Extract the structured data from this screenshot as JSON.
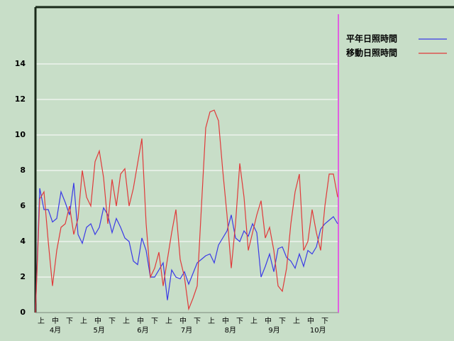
{
  "chart_data": {
    "type": "line",
    "x_minor_labels": [
      "上",
      "中",
      "下",
      "上",
      "中",
      "下",
      "上",
      "中",
      "下",
      "上",
      "中",
      "下",
      "上",
      "中",
      "下",
      "上",
      "中",
      "下",
      "上",
      "中",
      "下"
    ],
    "x_major_labels": [
      "4月",
      "5月",
      "6月",
      "7月",
      "8月",
      "9月",
      "10月"
    ],
    "ylim": [
      0,
      17.2
    ],
    "yticks": [
      0,
      2,
      4,
      6,
      8,
      10,
      12,
      14
    ],
    "grid": true,
    "series": [
      {
        "name": "平年日照時間",
        "color": "#3a3ae6",
        "values": [
          0,
          7.0,
          5.8,
          5.8,
          5.1,
          5.3,
          6.8,
          6.2,
          5.5,
          7.3,
          4.4,
          3.9,
          4.8,
          5.0,
          4.4,
          4.8,
          5.9,
          5.5,
          4.5,
          5.3,
          4.8,
          4.2,
          4.0,
          2.9,
          2.7,
          4.2,
          3.5,
          2.0,
          2.0,
          2.4,
          2.8,
          0.7,
          2.4,
          2.0,
          1.9,
          2.3,
          1.6,
          2.2,
          2.8,
          3.0,
          3.2,
          3.3,
          2.8,
          3.8,
          4.2,
          4.6,
          5.5,
          4.2,
          4.0,
          4.6,
          4.3,
          5.0,
          4.5,
          2.0,
          2.6,
          3.3,
          2.3,
          3.6,
          3.7,
          3.1,
          2.9,
          2.5,
          3.3,
          2.6,
          3.5,
          3.3,
          3.7,
          4.7,
          5.0,
          5.2,
          5.4,
          5.0
        ]
      },
      {
        "name": "移動日照時間",
        "color": "#e03a3a",
        "values": [
          0,
          6.4,
          6.8,
          4.0,
          1.5,
          3.5,
          4.8,
          5.0,
          6.0,
          4.4,
          5.3,
          8.0,
          6.5,
          6.0,
          8.5,
          9.1,
          7.6,
          5.0,
          7.5,
          6.0,
          7.8,
          8.1,
          6.0,
          7.0,
          8.4,
          9.8,
          5.0,
          2.0,
          2.5,
          3.4,
          1.5,
          3.0,
          4.5,
          5.8,
          3.0,
          2.0,
          0.2,
          0.8,
          1.5,
          6.0,
          10.4,
          11.3,
          11.4,
          10.8,
          8.0,
          5.5,
          2.5,
          5.0,
          8.4,
          6.5,
          3.5,
          4.5,
          5.5,
          6.3,
          4.2,
          4.8,
          3.5,
          1.5,
          1.2,
          2.5,
          5.0,
          6.8,
          7.8,
          3.5,
          4.0,
          5.8,
          4.5,
          3.5,
          6.0,
          7.8,
          7.8,
          6.5
        ]
      }
    ]
  }
}
